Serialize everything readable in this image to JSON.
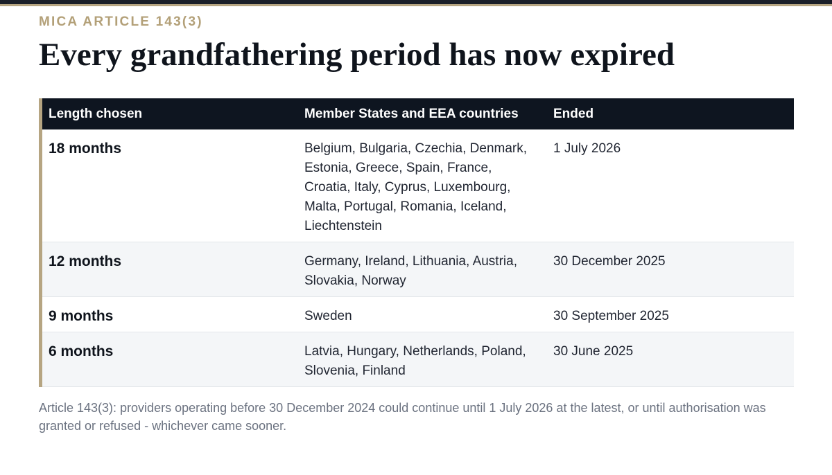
{
  "header": {
    "kicker": "MICA ARTICLE 143(3)",
    "title": "Every grandfathering period has now expired"
  },
  "table": {
    "columns": [
      "Length chosen",
      "Member States and EEA countries",
      "Ended"
    ],
    "rows": [
      {
        "length": "18 months",
        "countries": "Belgium, Bulgaria, Czechia, Denmark, Estonia, Greece, Spain, France, Croatia, Italy, Cyprus, Luxembourg, Malta, Portugal, Romania, Iceland, Liechtenstein",
        "ended": "1 July 2026"
      },
      {
        "length": "12 months",
        "countries": "Germany, Ireland, Lithuania, Austria, Slovakia, Norway",
        "ended": "30 December 2025"
      },
      {
        "length": "9 months",
        "countries": "Sweden",
        "ended": "30 September 2025"
      },
      {
        "length": "6 months",
        "countries": "Latvia, Hungary, Netherlands, Poland, Slovenia, Finland",
        "ended": "30 June 2025"
      }
    ]
  },
  "footnote": "Article 143(3): providers operating before 30 December 2024 could continue until 1 July 2026 at the latest, or until authorisation was granted or refused - whichever came sooner.",
  "colors": {
    "accent": "#b6a582",
    "header_bg": "#0e1520",
    "stripe": "#f4f6f8"
  }
}
